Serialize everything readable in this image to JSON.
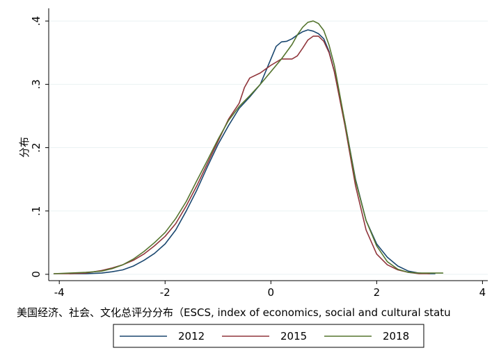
{
  "chart_data": {
    "type": "line",
    "title": "",
    "xlabel": "美国经济、社会、文化总评分分布（ESCS,  index of economics, social and cultural statu",
    "ylabel": "分布",
    "xlim": [
      -4.2,
      4.1
    ],
    "ylim": [
      -0.01,
      0.42
    ],
    "x_ticks": [
      -4,
      -2,
      0,
      2,
      4
    ],
    "y_ticks": [
      0,
      0.1,
      0.2,
      0.3,
      0.4
    ],
    "x_tick_labels": [
      "-4",
      "-2",
      "0",
      "2",
      "4"
    ],
    "y_tick_labels": [
      "0",
      ".1",
      ".2",
      ".3",
      ".4"
    ],
    "grid": "horizontal",
    "legend_position": "bottom",
    "series": [
      {
        "name": "2012",
        "color": "#1a476f",
        "x": [
          -3.8,
          -3.5,
          -3.2,
          -3.0,
          -2.8,
          -2.6,
          -2.4,
          -2.2,
          -2.0,
          -1.8,
          -1.6,
          -1.4,
          -1.2,
          -1.0,
          -0.8,
          -0.6,
          -0.4,
          -0.2,
          0.0,
          0.1,
          0.2,
          0.3,
          0.4,
          0.5,
          0.6,
          0.7,
          0.8,
          0.9,
          1.0,
          1.1,
          1.2,
          1.4,
          1.6,
          1.8,
          2.0,
          2.2,
          2.4,
          2.6,
          2.8,
          3.0,
          3.1
        ],
        "y": [
          0.001,
          0.001,
          0.002,
          0.004,
          0.007,
          0.013,
          0.022,
          0.033,
          0.048,
          0.07,
          0.1,
          0.133,
          0.17,
          0.205,
          0.235,
          0.262,
          0.28,
          0.3,
          0.34,
          0.36,
          0.367,
          0.368,
          0.372,
          0.378,
          0.383,
          0.386,
          0.384,
          0.38,
          0.372,
          0.352,
          0.32,
          0.24,
          0.15,
          0.085,
          0.048,
          0.027,
          0.013,
          0.005,
          0.002,
          0.001,
          0.001
        ]
      },
      {
        "name": "2015",
        "color": "#90353b",
        "x": [
          -4.1,
          -3.8,
          -3.5,
          -3.2,
          -3.0,
          -2.8,
          -2.6,
          -2.4,
          -2.2,
          -2.0,
          -1.8,
          -1.6,
          -1.4,
          -1.2,
          -1.0,
          -0.8,
          -0.6,
          -0.5,
          -0.4,
          -0.2,
          0.0,
          0.2,
          0.4,
          0.5,
          0.6,
          0.7,
          0.8,
          0.9,
          1.0,
          1.1,
          1.2,
          1.4,
          1.6,
          1.8,
          2.0,
          2.2,
          2.4,
          2.6,
          2.8,
          3.0
        ],
        "y": [
          0.001,
          0.001,
          0.002,
          0.006,
          0.01,
          0.015,
          0.022,
          0.032,
          0.045,
          0.06,
          0.08,
          0.108,
          0.14,
          0.175,
          0.21,
          0.245,
          0.27,
          0.295,
          0.31,
          0.318,
          0.33,
          0.34,
          0.34,
          0.345,
          0.357,
          0.37,
          0.376,
          0.376,
          0.368,
          0.35,
          0.32,
          0.235,
          0.14,
          0.07,
          0.032,
          0.015,
          0.007,
          0.003,
          0.001,
          0.001
        ]
      },
      {
        "name": "2018",
        "color": "#55752f",
        "x": [
          -4.1,
          -3.8,
          -3.5,
          -3.2,
          -3.0,
          -2.8,
          -2.6,
          -2.4,
          -2.2,
          -2.0,
          -1.8,
          -1.6,
          -1.4,
          -1.2,
          -1.0,
          -0.8,
          -0.6,
          -0.4,
          -0.2,
          0.0,
          0.2,
          0.4,
          0.5,
          0.6,
          0.7,
          0.8,
          0.9,
          1.0,
          1.1,
          1.2,
          1.4,
          1.6,
          1.8,
          2.0,
          2.2,
          2.4,
          2.6,
          2.8,
          3.0,
          3.25
        ],
        "y": [
          0.001,
          0.002,
          0.003,
          0.005,
          0.009,
          0.015,
          0.024,
          0.036,
          0.05,
          0.066,
          0.088,
          0.115,
          0.148,
          0.18,
          0.213,
          0.243,
          0.265,
          0.282,
          0.3,
          0.32,
          0.34,
          0.363,
          0.378,
          0.39,
          0.398,
          0.4,
          0.396,
          0.385,
          0.362,
          0.33,
          0.24,
          0.148,
          0.085,
          0.045,
          0.02,
          0.008,
          0.003,
          0.002,
          0.002,
          0.002
        ]
      }
    ]
  }
}
